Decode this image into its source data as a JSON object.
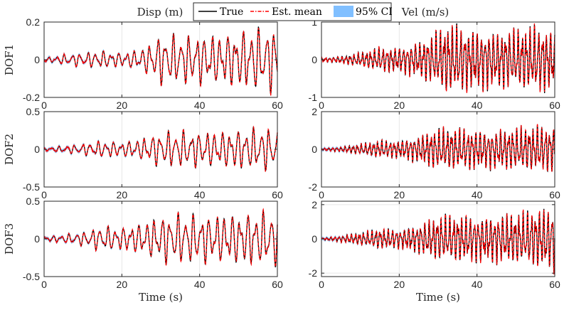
{
  "chart_data": [
    {
      "type": "line",
      "id": "disp-dof1",
      "column_title": "Disp (m)",
      "ylabel": "DOF1",
      "xlim": [
        0,
        60
      ],
      "ylim": [
        -0.2,
        0.2
      ],
      "xticks": [
        "0",
        "20",
        "40",
        "60"
      ],
      "yticks": [
        "0.2",
        "0",
        "-0.2"
      ],
      "ytick_values": [
        0.2,
        0,
        -0.2
      ],
      "peak_envelope": [
        [
          0,
          0.01
        ],
        [
          5,
          0.03
        ],
        [
          10,
          0.04
        ],
        [
          15,
          0.05
        ],
        [
          20,
          0.04
        ],
        [
          25,
          0.06
        ],
        [
          30,
          0.14
        ],
        [
          35,
          0.14
        ],
        [
          40,
          0.14
        ],
        [
          45,
          0.14
        ],
        [
          50,
          0.16
        ],
        [
          55,
          0.18
        ],
        [
          60,
          0.18
        ]
      ],
      "series": [
        {
          "name": "True",
          "style": "solid",
          "color": "#000000"
        },
        {
          "name": "Est. mean",
          "style": "dashed",
          "color": "#ff0000"
        },
        {
          "name": "95% CI",
          "style": "band",
          "color": "#4da6ff",
          "halfwidth": 0.03
        }
      ]
    },
    {
      "type": "line",
      "id": "vel-dof1",
      "column_title": "Vel (m/s)",
      "ylabel": "",
      "xlim": [
        0,
        60
      ],
      "ylim": [
        -1,
        1
      ],
      "xticks": [
        "0",
        "20",
        "40",
        "60"
      ],
      "yticks": [
        "1",
        "0",
        "-1"
      ],
      "ytick_values": [
        1,
        0,
        -1
      ],
      "peak_envelope": [
        [
          0,
          0.05
        ],
        [
          5,
          0.1
        ],
        [
          10,
          0.2
        ],
        [
          15,
          0.35
        ],
        [
          20,
          0.35
        ],
        [
          25,
          0.5
        ],
        [
          30,
          0.8
        ],
        [
          32,
          1.0
        ],
        [
          40,
          0.85
        ],
        [
          45,
          0.8
        ],
        [
          50,
          0.85
        ],
        [
          55,
          0.95
        ],
        [
          60,
          0.85
        ]
      ],
      "series": [
        {
          "name": "True",
          "style": "solid",
          "color": "#000000"
        },
        {
          "name": "Est. mean",
          "style": "dashed",
          "color": "#ff0000"
        },
        {
          "name": "95% CI",
          "style": "band",
          "color": "#4da6ff",
          "halfwidth": 0.02
        }
      ]
    },
    {
      "type": "line",
      "id": "disp-dof2",
      "ylabel": "DOF2",
      "xlim": [
        0,
        60
      ],
      "ylim": [
        -0.5,
        0.5
      ],
      "xticks": [
        "0",
        "20",
        "40",
        "60"
      ],
      "yticks": [
        "0.5",
        "0",
        "-0.5"
      ],
      "ytick_values": [
        0.5,
        0,
        -0.5
      ],
      "peak_envelope": [
        [
          0,
          0.02
        ],
        [
          5,
          0.05
        ],
        [
          10,
          0.08
        ],
        [
          15,
          0.12
        ],
        [
          20,
          0.1
        ],
        [
          25,
          0.15
        ],
        [
          30,
          0.25
        ],
        [
          35,
          0.26
        ],
        [
          40,
          0.25
        ],
        [
          45,
          0.25
        ],
        [
          50,
          0.28
        ],
        [
          55,
          0.3
        ],
        [
          60,
          0.3
        ]
      ],
      "series": [
        {
          "name": "True",
          "style": "solid",
          "color": "#000000"
        },
        {
          "name": "Est. mean",
          "style": "dashed",
          "color": "#ff0000"
        },
        {
          "name": "95% CI",
          "style": "band",
          "color": "#4da6ff",
          "halfwidth": 0.03
        }
      ]
    },
    {
      "type": "line",
      "id": "vel-dof2",
      "ylabel": "",
      "xlim": [
        0,
        60
      ],
      "ylim": [
        -2,
        2
      ],
      "xticks": [
        "0",
        "20",
        "40",
        "60"
      ],
      "yticks": [
        "2",
        "0",
        "-2"
      ],
      "ytick_values": [
        2,
        0,
        -2
      ],
      "peak_envelope": [
        [
          0,
          0.05
        ],
        [
          5,
          0.15
        ],
        [
          10,
          0.3
        ],
        [
          15,
          0.5
        ],
        [
          20,
          0.5
        ],
        [
          25,
          0.75
        ],
        [
          30,
          1.2
        ],
        [
          35,
          1.2
        ],
        [
          40,
          1.1
        ],
        [
          45,
          1.1
        ],
        [
          50,
          1.2
        ],
        [
          55,
          1.3
        ],
        [
          60,
          1.3
        ]
      ],
      "series": [
        {
          "name": "True",
          "style": "solid",
          "color": "#000000"
        },
        {
          "name": "Est. mean",
          "style": "dashed",
          "color": "#ff0000"
        },
        {
          "name": "95% CI",
          "style": "band",
          "color": "#4da6ff",
          "halfwidth": 0.03
        }
      ]
    },
    {
      "type": "line",
      "id": "disp-dof3",
      "ylabel": "DOF3",
      "xlim": [
        0,
        60
      ],
      "ylim": [
        -0.5,
        0.5
      ],
      "xticks": [
        "0",
        "20",
        "40",
        "60"
      ],
      "yticks": [
        "0.5",
        "0",
        "-0.5"
      ],
      "ytick_values": [
        0.5,
        0,
        -0.5
      ],
      "xlabel": "Time (s)",
      "peak_envelope": [
        [
          0,
          0.03
        ],
        [
          5,
          0.06
        ],
        [
          10,
          0.1
        ],
        [
          15,
          0.18
        ],
        [
          20,
          0.16
        ],
        [
          25,
          0.22
        ],
        [
          30,
          0.33
        ],
        [
          35,
          0.36
        ],
        [
          40,
          0.34
        ],
        [
          45,
          0.34
        ],
        [
          50,
          0.36
        ],
        [
          55,
          0.38
        ],
        [
          60,
          0.38
        ]
      ],
      "series": [
        {
          "name": "True",
          "style": "solid",
          "color": "#000000"
        },
        {
          "name": "Est. mean",
          "style": "dashed",
          "color": "#ff0000"
        },
        {
          "name": "95% CI",
          "style": "band",
          "color": "#4da6ff",
          "halfwidth": 0.03
        }
      ]
    },
    {
      "type": "line",
      "id": "vel-dof3",
      "ylabel": "",
      "xlim": [
        0,
        60
      ],
      "ylim": [
        -2.2,
        2.2
      ],
      "xticks": [
        "0",
        "20",
        "40",
        "60"
      ],
      "yticks": [
        "2",
        "0",
        "-2"
      ],
      "ytick_values": [
        2,
        0,
        -2
      ],
      "xlabel": "Time (s)",
      "peak_envelope": [
        [
          0,
          0.05
        ],
        [
          5,
          0.2
        ],
        [
          10,
          0.4
        ],
        [
          15,
          0.65
        ],
        [
          20,
          0.6
        ],
        [
          25,
          0.9
        ],
        [
          30,
          1.4
        ],
        [
          35,
          1.5
        ],
        [
          40,
          1.4
        ],
        [
          45,
          1.5
        ],
        [
          50,
          1.6
        ],
        [
          55,
          1.8
        ],
        [
          60,
          1.95
        ]
      ],
      "series": [
        {
          "name": "True",
          "style": "solid",
          "color": "#000000"
        },
        {
          "name": "Est. mean",
          "style": "dashed",
          "color": "#ff0000"
        },
        {
          "name": "95% CI",
          "style": "band",
          "color": "#4da6ff",
          "halfwidth": 0.03
        }
      ]
    }
  ],
  "legend": {
    "entries": [
      {
        "label": "True",
        "color": "#000000",
        "style": "solid"
      },
      {
        "label": "Est. mean",
        "color": "#ff0000",
        "style": "dashdot"
      },
      {
        "label": "95% CI",
        "color": "#80bfff",
        "style": "patch"
      }
    ],
    "placement": "top-center"
  },
  "colors": {
    "true": "#000000",
    "estimate": "#ff0000",
    "ci": "#4da6ff",
    "grid": "#e6e6e6",
    "axis": "#262626"
  }
}
